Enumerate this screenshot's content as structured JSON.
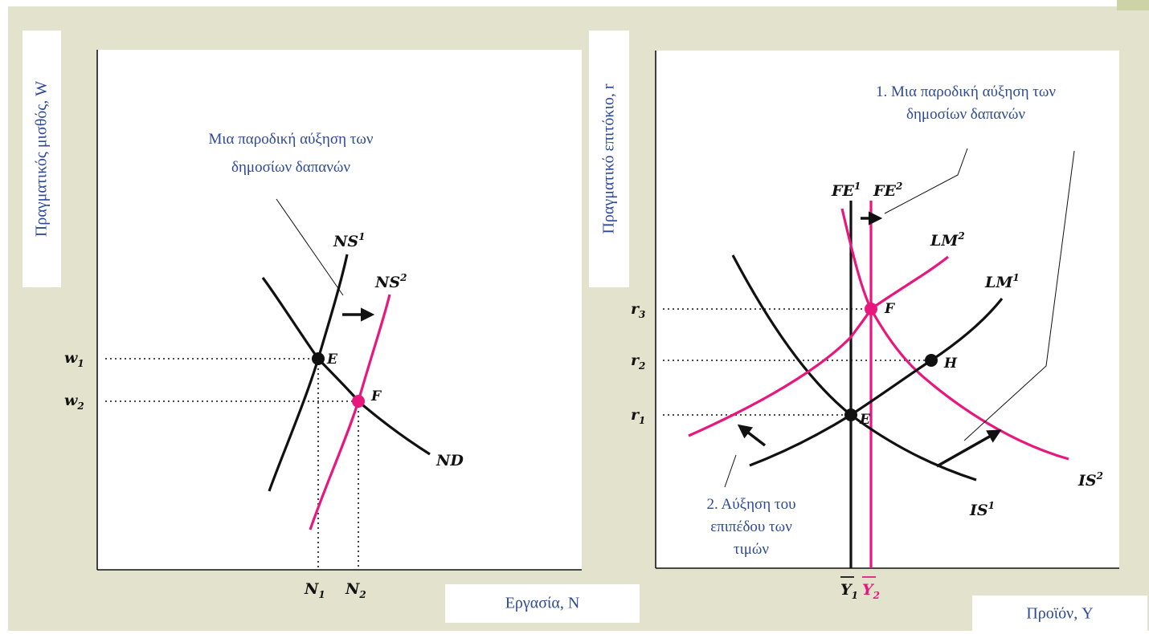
{
  "colors": {
    "background": "#e3e2cc",
    "curve_black": "#111111",
    "curve_magenta": "#e8177d",
    "text_blue": "#2d4a9a"
  },
  "left": {
    "y_axis_label": "Πραγματικός μισθός, W",
    "x_axis_label": "Εργασία, N",
    "annotation_line1": "Μια παροδική αύξηση των",
    "annotation_line2": "δημοσίων δαπανών",
    "curves": {
      "ns1": "NS",
      "ns1_sup": "1",
      "ns2": "NS",
      "ns2_sup": "2",
      "nd": "ND"
    },
    "points": {
      "e": "E",
      "f": "F"
    },
    "ticks": {
      "w1": "w",
      "w1_sub": "1",
      "w2": "w",
      "w2_sub": "2",
      "n1": "N",
      "n1_sub": "1",
      "n2": "N",
      "n2_sub": "2"
    }
  },
  "right": {
    "y_axis_label": "Πραγματικό επιτόκιο, r",
    "x_axis_label": "Προϊόν, Y",
    "annotation1_line1": "1. Μια παροδική αύξηση των",
    "annotation1_line2": "δημοσίων δαπανών",
    "annotation2_line1": "2. Αύξηση του",
    "annotation2_line2": "επιπέδου των",
    "annotation2_line3": "τιμών",
    "curves": {
      "fe1": "FE",
      "fe1_sup": "1",
      "fe2": "FE",
      "fe2_sup": "2",
      "lm1": "LM",
      "lm1_sup": "1",
      "lm2": "LM",
      "lm2_sup": "2",
      "is1": "IS",
      "is1_sup": "1",
      "is2": "IS",
      "is2_sup": "2"
    },
    "points": {
      "e": "E",
      "f": "F",
      "h": "H"
    },
    "ticks": {
      "r1": "r",
      "r1_sub": "1",
      "r2": "r",
      "r2_sub": "2",
      "r3": "r",
      "r3_sub": "3",
      "y1": "Y",
      "y1_sub": "1",
      "y2": "Y",
      "y2_sub": "2"
    }
  }
}
